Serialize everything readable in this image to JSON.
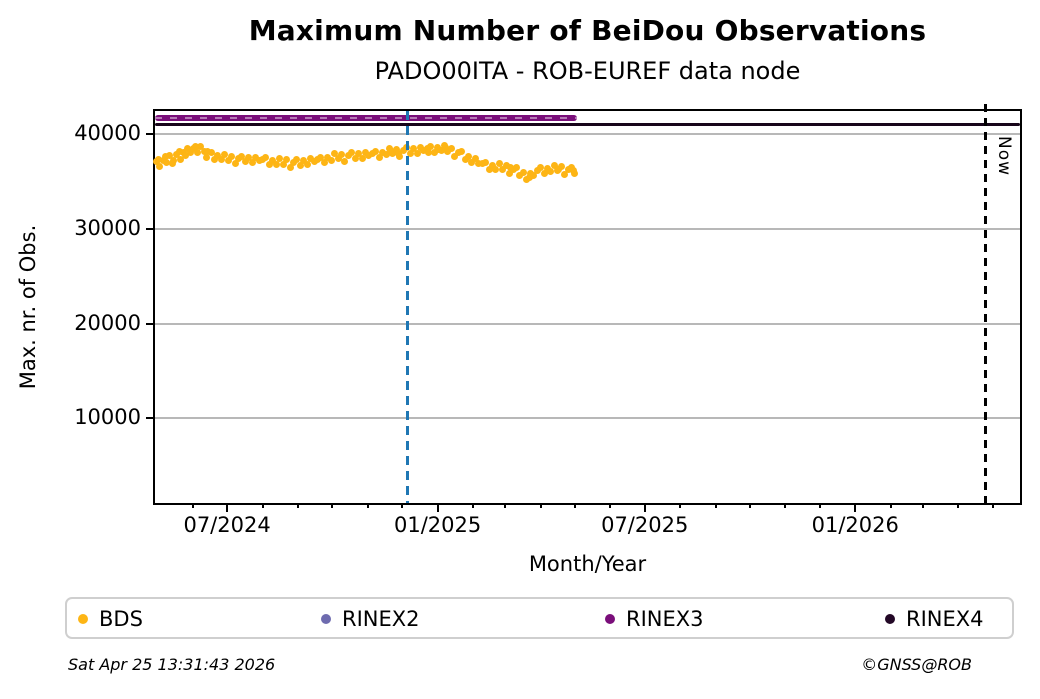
{
  "header": {
    "title": "Maximum Number of BeiDou Observations",
    "subtitle": "PADO00ITA - ROB-EUREF data node"
  },
  "footer": {
    "timestamp": "Sat Apr 25 13:31:43 2026",
    "credit": "©GNSS@ROB"
  },
  "chart_data": {
    "type": "scatter",
    "title": "Maximum Number of BeiDou Observations",
    "subtitle": "PADO00ITA - ROB-EUREF data node",
    "xlabel": "Month/Year",
    "ylabel": "Max. nr. of Obs.",
    "x_domain": [
      "2024-04-29",
      "2026-05-25"
    ],
    "ylim": [
      1075,
      42425
    ],
    "yticks": [
      10000,
      20000,
      30000,
      40000
    ],
    "grid": "horizontal-only",
    "xticks_major": [
      {
        "date": "2024-07-01",
        "label": "07/2024"
      },
      {
        "date": "2025-01-01",
        "label": "01/2025"
      },
      {
        "date": "2025-07-01",
        "label": "07/2025"
      },
      {
        "date": "2026-01-01",
        "label": "01/2026"
      }
    ],
    "xticks_minor": "monthly",
    "vlines": [
      {
        "date": "2024-12-06",
        "color": "#1F77B4",
        "style": "dashed",
        "label": ""
      },
      {
        "date": "2026-04-25",
        "color": "#000000",
        "style": "dashed",
        "label": "Now"
      }
    ],
    "hlines": [
      {
        "name": "RINEX3",
        "value": 41700,
        "color": "#7A0E7A",
        "span": [
          "2024-04-29",
          "2025-05-03"
        ],
        "thick": true
      },
      {
        "name": "RINEX4",
        "value": 40950,
        "color": "#17051A",
        "span": [
          "2024-04-29",
          "2026-05-25"
        ],
        "thick": false
      }
    ],
    "legend": {
      "position": "bottom",
      "entries": [
        {
          "label": "BDS",
          "color": "#FDB515"
        },
        {
          "label": "RINEX2",
          "color": "#6E6BAF"
        },
        {
          "label": "RINEX3",
          "color": "#7A0E7A"
        },
        {
          "label": "RINEX4",
          "color": "#230826"
        }
      ]
    },
    "series": [
      {
        "name": "BDS",
        "marker": "dot",
        "color": "#FDB515",
        "epoch": "2024-04-30",
        "points_format": "[days_since_epoch, max_nr_of_obs]",
        "points": [
          [
            0,
            37050
          ],
          [
            3,
            36540
          ],
          [
            6,
            37160
          ],
          [
            9,
            36940
          ],
          [
            12,
            37700
          ],
          [
            15,
            37250
          ],
          [
            18,
            37880
          ],
          [
            21,
            37280
          ],
          [
            24,
            38000
          ],
          [
            27,
            38460
          ],
          [
            30,
            38010
          ],
          [
            33,
            38510
          ],
          [
            36,
            38000
          ],
          [
            39,
            38650
          ],
          [
            42,
            38140
          ],
          [
            45,
            38130
          ],
          [
            48,
            38090
          ],
          [
            51,
            37290
          ],
          [
            54,
            37710
          ],
          [
            57,
            37290
          ],
          [
            60,
            37850
          ],
          [
            63,
            37200
          ],
          [
            66,
            37610
          ],
          [
            69,
            36840
          ],
          [
            72,
            37390
          ],
          [
            75,
            37670
          ],
          [
            78,
            37050
          ],
          [
            81,
            37520
          ],
          [
            84,
            36960
          ],
          [
            87,
            37560
          ],
          [
            90,
            37160
          ],
          [
            93,
            37340
          ],
          [
            96,
            37480
          ],
          [
            99,
            36790
          ],
          [
            102,
            37230
          ],
          [
            105,
            36830
          ],
          [
            108,
            37410
          ],
          [
            111,
            36800
          ],
          [
            114,
            37260
          ],
          [
            117,
            36490
          ],
          [
            120,
            37040
          ],
          [
            123,
            37330
          ],
          [
            126,
            36720
          ],
          [
            129,
            37230
          ],
          [
            132,
            36730
          ],
          [
            135,
            37390
          ],
          [
            138,
            37050
          ],
          [
            141,
            37300
          ],
          [
            144,
            37520
          ],
          [
            147,
            36940
          ],
          [
            150,
            37490
          ],
          [
            153,
            37200
          ],
          [
            156,
            37890
          ],
          [
            159,
            37370
          ],
          [
            162,
            37870
          ],
          [
            165,
            37140
          ],
          [
            168,
            37730
          ],
          [
            171,
            38050
          ],
          [
            174,
            37450
          ],
          [
            177,
            37950
          ],
          [
            180,
            37440
          ],
          [
            183,
            38090
          ],
          [
            186,
            37740
          ],
          [
            189,
            37970
          ],
          [
            192,
            38170
          ],
          [
            195,
            37570
          ],
          [
            198,
            38100
          ],
          [
            201,
            37790
          ],
          [
            204,
            38460
          ],
          [
            207,
            37920
          ],
          [
            210,
            38400
          ],
          [
            213,
            37650
          ],
          [
            216,
            38220
          ],
          [
            219,
            38530
          ],
          [
            222,
            37930
          ],
          [
            225,
            38430
          ],
          [
            228,
            37920
          ],
          [
            231,
            38570
          ],
          [
            234,
            38230
          ],
          [
            237,
            38470
          ],
          [
            240,
            38680
          ],
          [
            243,
            38090
          ],
          [
            246,
            38610
          ],
          [
            249,
            38220
          ],
          [
            252,
            38810
          ],
          [
            255,
            38200
          ],
          [
            258,
            38520
          ],
          [
            261,
            37600
          ],
          [
            264,
            38010
          ],
          [
            267,
            38130
          ],
          [
            270,
            37340
          ],
          [
            273,
            37640
          ],
          [
            276,
            36940
          ],
          [
            279,
            37390
          ],
          [
            282,
            36850
          ],
          [
            285,
            36880
          ],
          [
            288,
            36980
          ],
          [
            291,
            36270
          ],
          [
            294,
            36700
          ],
          [
            297,
            36300
          ],
          [
            300,
            36900
          ],
          [
            303,
            36280
          ],
          [
            306,
            36670
          ],
          [
            309,
            35800
          ],
          [
            312,
            36250
          ],
          [
            315,
            36440
          ],
          [
            318,
            35660
          ],
          [
            321,
            35980
          ],
          [
            324,
            35220
          ],
          [
            327,
            35800
          ],
          [
            330,
            35660
          ],
          [
            333,
            36120
          ],
          [
            336,
            36420
          ],
          [
            339,
            35830
          ],
          [
            342,
            36380
          ],
          [
            345,
            36080
          ],
          [
            348,
            36710
          ],
          [
            351,
            36120
          ],
          [
            354,
            36560
          ],
          [
            357,
            35760
          ],
          [
            360,
            36280
          ],
          [
            363,
            36500
          ],
          [
            366,
            35810
          ],
          [
            2,
            37350
          ],
          [
            8,
            37600
          ],
          [
            14,
            36850
          ],
          [
            20,
            38150
          ],
          [
            26,
            37750
          ],
          [
            34,
            38700
          ],
          [
            44,
            37500
          ],
          [
            205,
            38250
          ],
          [
            212,
            37980
          ],
          [
            238,
            38050
          ],
          [
            247,
            38350
          ],
          [
            253,
            38600
          ],
          [
            310,
            36500
          ],
          [
            326,
            35450
          ],
          [
            352,
            36300
          ],
          [
            365,
            36200
          ]
        ]
      },
      {
        "name": "RINEX2",
        "marker": "dot",
        "color": "#6E6BAF",
        "points": []
      }
    ]
  }
}
